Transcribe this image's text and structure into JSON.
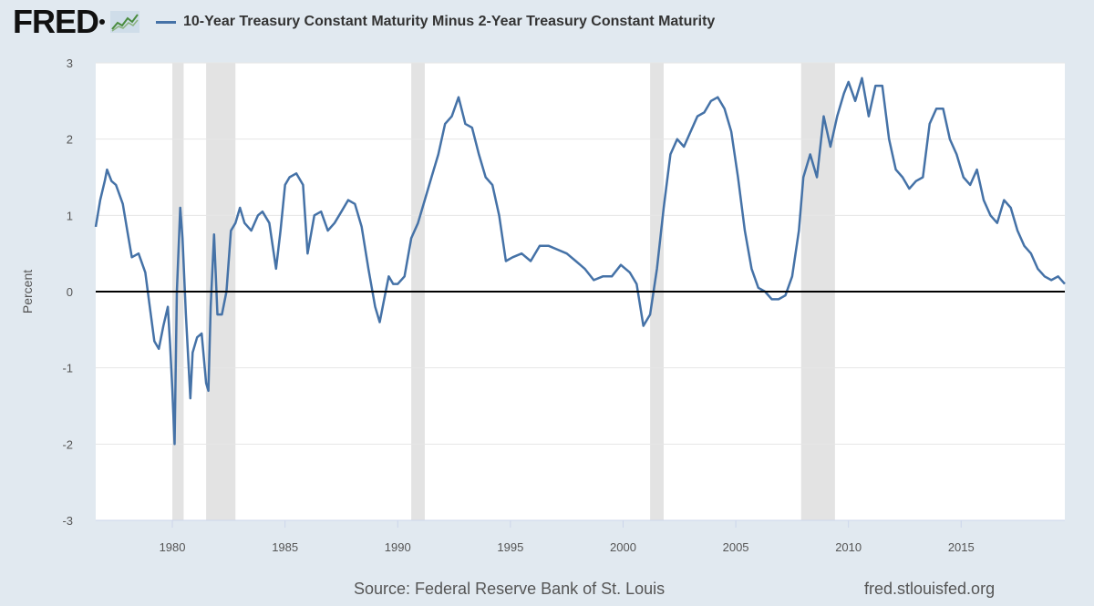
{
  "header": {
    "logo": "FRED",
    "logo_icon": "line-chart-icon",
    "legend_label": "10-Year Treasury Constant Maturity Minus 2-Year Treasury Constant Maturity",
    "series_color": "#4572a7"
  },
  "footer": {
    "source": "Source: Federal Reserve Bank of St. Louis",
    "site": "fred.stlouisfed.org"
  },
  "chart_data": {
    "type": "line",
    "title": "",
    "xlabel": "",
    "ylabel": "Percent",
    "xlim": [
      1976.6,
      2019.6
    ],
    "ylim": [
      -3,
      3
    ],
    "yticks": [
      "3",
      "2",
      "1",
      "0",
      "-1",
      "-2",
      "-3"
    ],
    "xticks": [
      "1980",
      "1985",
      "1990",
      "1995",
      "2000",
      "2005",
      "2010",
      "2015"
    ],
    "grid": true,
    "zero_line": true,
    "recessions": [
      [
        1980.0,
        1980.5
      ],
      [
        1981.5,
        1982.8
      ],
      [
        1990.6,
        1991.2
      ],
      [
        2001.2,
        2001.8
      ],
      [
        2007.9,
        2009.4
      ]
    ],
    "series": [
      {
        "name": "10-Year Treasury Constant Maturity Minus 2-Year Treasury Constant Maturity",
        "color": "#4572a7",
        "x": [
          1976.6,
          1976.8,
          1977.0,
          1977.1,
          1977.3,
          1977.5,
          1977.8,
          1978.0,
          1978.2,
          1978.5,
          1978.8,
          1979.0,
          1979.2,
          1979.4,
          1979.6,
          1979.8,
          1979.9,
          1980.0,
          1980.1,
          1980.2,
          1980.35,
          1980.45,
          1980.6,
          1980.8,
          1980.9,
          1981.1,
          1981.3,
          1981.5,
          1981.6,
          1981.7,
          1981.85,
          1982.0,
          1982.2,
          1982.4,
          1982.6,
          1982.8,
          1983.0,
          1983.2,
          1983.5,
          1983.8,
          1984.0,
          1984.3,
          1984.6,
          1984.8,
          1985.0,
          1985.2,
          1985.5,
          1985.8,
          1986.0,
          1986.3,
          1986.6,
          1986.9,
          1987.2,
          1987.5,
          1987.8,
          1988.1,
          1988.4,
          1988.7,
          1989.0,
          1989.2,
          1989.4,
          1989.6,
          1989.8,
          1990.0,
          1990.3,
          1990.6,
          1990.9,
          1991.2,
          1991.5,
          1991.8,
          1992.1,
          1992.4,
          1992.7,
          1993.0,
          1993.3,
          1993.6,
          1993.9,
          1994.2,
          1994.5,
          1994.8,
          1995.1,
          1995.5,
          1995.9,
          1996.3,
          1996.7,
          1997.1,
          1997.5,
          1997.9,
          1998.3,
          1998.7,
          1999.1,
          1999.5,
          1999.9,
          2000.3,
          2000.6,
          2000.9,
          2001.2,
          2001.5,
          2001.8,
          2002.1,
          2002.4,
          2002.7,
          2003.0,
          2003.3,
          2003.6,
          2003.9,
          2004.2,
          2004.5,
          2004.8,
          2005.1,
          2005.4,
          2005.7,
          2006.0,
          2006.3,
          2006.6,
          2006.9,
          2007.2,
          2007.5,
          2007.8,
          2008.0,
          2008.3,
          2008.6,
          2008.9,
          2009.2,
          2009.5,
          2009.8,
          2010.0,
          2010.3,
          2010.6,
          2010.9,
          2011.2,
          2011.5,
          2011.8,
          2012.1,
          2012.4,
          2012.7,
          2013.0,
          2013.3,
          2013.6,
          2013.9,
          2014.2,
          2014.5,
          2014.8,
          2015.1,
          2015.4,
          2015.7,
          2016.0,
          2016.3,
          2016.6,
          2016.9,
          2017.2,
          2017.5,
          2017.8,
          2018.1,
          2018.4,
          2018.7,
          2019.0,
          2019.3,
          2019.6
        ],
        "values": [
          0.85,
          1.2,
          1.45,
          1.6,
          1.45,
          1.4,
          1.15,
          0.8,
          0.45,
          0.5,
          0.25,
          -0.2,
          -0.65,
          -0.75,
          -0.45,
          -0.2,
          -0.7,
          -1.3,
          -2.0,
          0.0,
          1.1,
          0.7,
          -0.3,
          -1.4,
          -0.8,
          -0.6,
          -0.55,
          -1.2,
          -1.3,
          -0.2,
          0.75,
          -0.3,
          -0.3,
          0.0,
          0.8,
          0.9,
          1.1,
          0.9,
          0.8,
          1.0,
          1.05,
          0.9,
          0.3,
          0.8,
          1.4,
          1.5,
          1.55,
          1.4,
          0.5,
          1.0,
          1.05,
          0.8,
          0.9,
          1.05,
          1.2,
          1.15,
          0.85,
          0.3,
          -0.2,
          -0.4,
          -0.1,
          0.2,
          0.1,
          0.1,
          0.2,
          0.7,
          0.9,
          1.2,
          1.5,
          1.8,
          2.2,
          2.3,
          2.55,
          2.2,
          2.15,
          1.8,
          1.5,
          1.4,
          1.0,
          0.4,
          0.45,
          0.5,
          0.4,
          0.6,
          0.6,
          0.55,
          0.5,
          0.4,
          0.3,
          0.15,
          0.2,
          0.2,
          0.35,
          0.25,
          0.1,
          -0.45,
          -0.3,
          0.3,
          1.1,
          1.8,
          2.0,
          1.9,
          2.1,
          2.3,
          2.35,
          2.5,
          2.55,
          2.4,
          2.1,
          1.5,
          0.8,
          0.3,
          0.05,
          0.0,
          -0.1,
          -0.1,
          -0.05,
          0.2,
          0.8,
          1.5,
          1.8,
          1.5,
          2.3,
          1.9,
          2.3,
          2.6,
          2.75,
          2.5,
          2.8,
          2.3,
          2.7,
          2.7,
          2.0,
          1.6,
          1.5,
          1.35,
          1.45,
          1.5,
          2.2,
          2.4,
          2.4,
          2.0,
          1.8,
          1.5,
          1.4,
          1.6,
          1.2,
          1.0,
          0.9,
          1.2,
          1.1,
          0.8,
          0.6,
          0.5,
          0.3,
          0.2,
          0.15,
          0.2,
          0.1
        ]
      }
    ]
  }
}
